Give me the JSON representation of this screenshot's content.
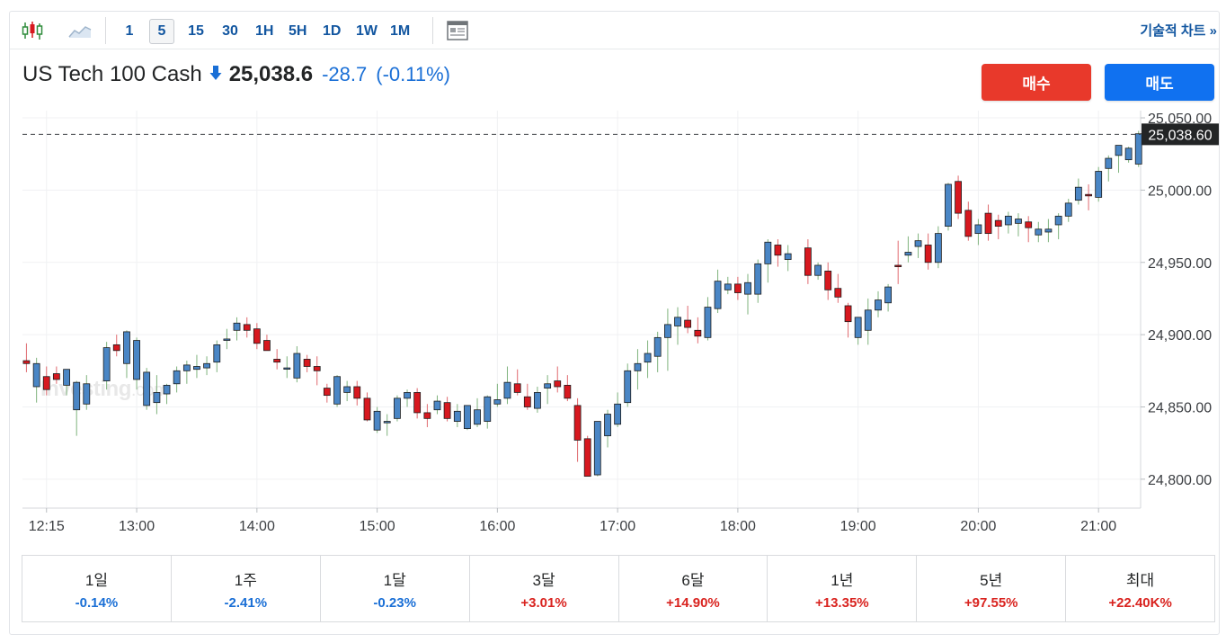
{
  "toolbar": {
    "intervals": [
      "1",
      "5",
      "15",
      "30",
      "1H",
      "5H",
      "1D",
      "1W",
      "1M"
    ],
    "active_interval": "5",
    "tech_chart_label": "기술적 차트 »"
  },
  "header": {
    "instrument": "US Tech 100 Cash",
    "price": "25,038.6",
    "change": "-28.7",
    "change_pct": "(-0.11%)"
  },
  "buttons": {
    "buy": "매수",
    "sell": "매도"
  },
  "watermark": {
    "main": "Investing",
    "suffix": ".com"
  },
  "periods": [
    {
      "label": "1일",
      "value": "-0.14%",
      "dir": "neg"
    },
    {
      "label": "1주",
      "value": "-2.41%",
      "dir": "neg"
    },
    {
      "label": "1달",
      "value": "-0.23%",
      "dir": "neg"
    },
    {
      "label": "3달",
      "value": "+3.01%",
      "dir": "pos"
    },
    {
      "label": "6달",
      "value": "+14.90%",
      "dir": "pos"
    },
    {
      "label": "1년",
      "value": "+13.35%",
      "dir": "pos"
    },
    {
      "label": "5년",
      "value": "+97.55%",
      "dir": "pos"
    },
    {
      "label": "최대",
      "value": "+22.40K%",
      "dir": "pos"
    }
  ],
  "colors": {
    "up": "#4a86c5",
    "down": "#d7181f",
    "accent": "#1256a0",
    "buy": "#e8392b",
    "sell": "#1071f0"
  },
  "chart_data": {
    "type": "candlestick",
    "ylim": [
      24780,
      25055
    ],
    "yticks": [
      "25,050.00",
      "25,000.00",
      "24,950.00",
      "24,900.00",
      "24,850.00",
      "24,800.00"
    ],
    "ytick_values": [
      25050,
      25000,
      24950,
      24900,
      24850,
      24800
    ],
    "xticks": [
      "12:15",
      "13:00",
      "14:00",
      "15:00",
      "16:00",
      "17:00",
      "18:00",
      "19:00",
      "20:00",
      "21:00"
    ],
    "xtick_hours": [
      12.25,
      13,
      14,
      15,
      16,
      17,
      18,
      19,
      20,
      21
    ],
    "current_price_label": "25,038.60",
    "current_price": 25038.6,
    "time_range_hours": [
      12.05,
      21.35
    ],
    "candles": [
      {
        "t": 12.083,
        "o": 24882,
        "h": 24894,
        "l": 24874,
        "c": 24880
      },
      {
        "t": 12.167,
        "o": 24864,
        "h": 24884,
        "l": 24853,
        "c": 24880
      },
      {
        "t": 12.25,
        "o": 24871,
        "h": 24878,
        "l": 24858,
        "c": 24862
      },
      {
        "t": 12.333,
        "o": 24873,
        "h": 24878,
        "l": 24866,
        "c": 24869
      },
      {
        "t": 12.417,
        "o": 24865,
        "h": 24875,
        "l": 24858,
        "c": 24876
      },
      {
        "t": 12.5,
        "o": 24848,
        "h": 24868,
        "l": 24830,
        "c": 24867
      },
      {
        "t": 12.583,
        "o": 24852,
        "h": 24872,
        "l": 24848,
        "c": 24866
      },
      {
        "t": 12.75,
        "o": 24868,
        "h": 24895,
        "l": 24862,
        "c": 24891
      },
      {
        "t": 12.833,
        "o": 24893,
        "h": 24900,
        "l": 24885,
        "c": 24889
      },
      {
        "t": 12.917,
        "o": 24880,
        "h": 24903,
        "l": 24870,
        "c": 24902
      },
      {
        "t": 13.0,
        "o": 24869,
        "h": 24898,
        "l": 24862,
        "c": 24896
      },
      {
        "t": 13.083,
        "o": 24851,
        "h": 24877,
        "l": 24848,
        "c": 24874
      },
      {
        "t": 13.167,
        "o": 24853,
        "h": 24872,
        "l": 24845,
        "c": 24860
      },
      {
        "t": 13.25,
        "o": 24859,
        "h": 24866,
        "l": 24852,
        "c": 24865
      },
      {
        "t": 13.333,
        "o": 24866,
        "h": 24878,
        "l": 24860,
        "c": 24875
      },
      {
        "t": 13.417,
        "o": 24875,
        "h": 24882,
        "l": 24866,
        "c": 24879
      },
      {
        "t": 13.5,
        "o": 24876,
        "h": 24886,
        "l": 24870,
        "c": 24878
      },
      {
        "t": 13.583,
        "o": 24877,
        "h": 24885,
        "l": 24872,
        "c": 24880
      },
      {
        "t": 13.667,
        "o": 24881,
        "h": 24896,
        "l": 24874,
        "c": 24893
      },
      {
        "t": 13.75,
        "o": 24896,
        "h": 24904,
        "l": 24890,
        "c": 24897
      },
      {
        "t": 13.833,
        "o": 24903,
        "h": 24912,
        "l": 24896,
        "c": 24908
      },
      {
        "t": 13.917,
        "o": 24907,
        "h": 24912,
        "l": 24898,
        "c": 24903
      },
      {
        "t": 14.0,
        "o": 24904,
        "h": 24908,
        "l": 24890,
        "c": 24894
      },
      {
        "t": 14.083,
        "o": 24896,
        "h": 24900,
        "l": 24890,
        "c": 24889
      },
      {
        "t": 14.167,
        "o": 24883,
        "h": 24890,
        "l": 24876,
        "c": 24881
      },
      {
        "t": 14.25,
        "o": 24877,
        "h": 24885,
        "l": 24870,
        "c": 24877
      },
      {
        "t": 14.333,
        "o": 24870,
        "h": 24892,
        "l": 24867,
        "c": 24887
      },
      {
        "t": 14.417,
        "o": 24883,
        "h": 24886,
        "l": 24874,
        "c": 24878
      },
      {
        "t": 14.5,
        "o": 24878,
        "h": 24885,
        "l": 24865,
        "c": 24875
      },
      {
        "t": 14.583,
        "o": 24863,
        "h": 24866,
        "l": 24853,
        "c": 24858
      },
      {
        "t": 14.667,
        "o": 24852,
        "h": 24872,
        "l": 24850,
        "c": 24871
      },
      {
        "t": 14.75,
        "o": 24860,
        "h": 24868,
        "l": 24854,
        "c": 24864
      },
      {
        "t": 14.833,
        "o": 24864,
        "h": 24868,
        "l": 24851,
        "c": 24856
      },
      {
        "t": 14.917,
        "o": 24856,
        "h": 24860,
        "l": 24840,
        "c": 24841
      },
      {
        "t": 15.0,
        "o": 24834,
        "h": 24850,
        "l": 24832,
        "c": 24847
      },
      {
        "t": 15.083,
        "o": 24839,
        "h": 24845,
        "l": 24830,
        "c": 24840
      },
      {
        "t": 15.167,
        "o": 24842,
        "h": 24858,
        "l": 24840,
        "c": 24856
      },
      {
        "t": 15.25,
        "o": 24856,
        "h": 24862,
        "l": 24850,
        "c": 24860
      },
      {
        "t": 15.333,
        "o": 24860,
        "h": 24863,
        "l": 24842,
        "c": 24846
      },
      {
        "t": 15.417,
        "o": 24846,
        "h": 24852,
        "l": 24836,
        "c": 24842
      },
      {
        "t": 15.5,
        "o": 24848,
        "h": 24858,
        "l": 24845,
        "c": 24854
      },
      {
        "t": 15.583,
        "o": 24853,
        "h": 24857,
        "l": 24840,
        "c": 24842
      },
      {
        "t": 15.667,
        "o": 24840,
        "h": 24852,
        "l": 24836,
        "c": 24847
      },
      {
        "t": 15.75,
        "o": 24835,
        "h": 24850,
        "l": 24834,
        "c": 24851
      },
      {
        "t": 15.833,
        "o": 24838,
        "h": 24856,
        "l": 24836,
        "c": 24848
      },
      {
        "t": 15.917,
        "o": 24840,
        "h": 24858,
        "l": 24835,
        "c": 24857
      },
      {
        "t": 16.0,
        "o": 24852,
        "h": 24866,
        "l": 24850,
        "c": 24855
      },
      {
        "t": 16.083,
        "o": 24856,
        "h": 24878,
        "l": 24852,
        "c": 24867
      },
      {
        "t": 16.167,
        "o": 24866,
        "h": 24876,
        "l": 24858,
        "c": 24860
      },
      {
        "t": 16.25,
        "o": 24857,
        "h": 24866,
        "l": 24848,
        "c": 24850
      },
      {
        "t": 16.333,
        "o": 24849,
        "h": 24864,
        "l": 24846,
        "c": 24860
      },
      {
        "t": 16.417,
        "o": 24863,
        "h": 24872,
        "l": 24852,
        "c": 24866
      },
      {
        "t": 16.5,
        "o": 24868,
        "h": 24878,
        "l": 24860,
        "c": 24864
      },
      {
        "t": 16.583,
        "o": 24865,
        "h": 24872,
        "l": 24854,
        "c": 24856
      },
      {
        "t": 16.667,
        "o": 24851,
        "h": 24856,
        "l": 24812,
        "c": 24827
      },
      {
        "t": 16.75,
        "o": 24828,
        "h": 24830,
        "l": 24802,
        "c": 24802
      },
      {
        "t": 16.833,
        "o": 24803,
        "h": 24840,
        "l": 24802,
        "c": 24840
      },
      {
        "t": 16.917,
        "o": 24830,
        "h": 24848,
        "l": 24822,
        "c": 24845
      },
      {
        "t": 17.0,
        "o": 24838,
        "h": 24860,
        "l": 24836,
        "c": 24852
      },
      {
        "t": 17.083,
        "o": 24853,
        "h": 24880,
        "l": 24850,
        "c": 24875
      },
      {
        "t": 17.167,
        "o": 24875,
        "h": 24890,
        "l": 24862,
        "c": 24880
      },
      {
        "t": 17.25,
        "o": 24881,
        "h": 24896,
        "l": 24870,
        "c": 24887
      },
      {
        "t": 17.333,
        "o": 24885,
        "h": 24902,
        "l": 24874,
        "c": 24898
      },
      {
        "t": 17.417,
        "o": 24898,
        "h": 24918,
        "l": 24875,
        "c": 24907
      },
      {
        "t": 17.5,
        "o": 24906,
        "h": 24919,
        "l": 24893,
        "c": 24912
      },
      {
        "t": 17.583,
        "o": 24910,
        "h": 24920,
        "l": 24901,
        "c": 24905
      },
      {
        "t": 17.667,
        "o": 24903,
        "h": 24912,
        "l": 24894,
        "c": 24899
      },
      {
        "t": 17.75,
        "o": 24898,
        "h": 24926,
        "l": 24896,
        "c": 24919
      },
      {
        "t": 17.833,
        "o": 24918,
        "h": 24945,
        "l": 24915,
        "c": 24937
      },
      {
        "t": 17.917,
        "o": 24931,
        "h": 24940,
        "l": 24928,
        "c": 24935
      },
      {
        "t": 18.0,
        "o": 24935,
        "h": 24940,
        "l": 24924,
        "c": 24929
      },
      {
        "t": 18.083,
        "o": 24928,
        "h": 24942,
        "l": 24914,
        "c": 24936
      },
      {
        "t": 18.167,
        "o": 24928,
        "h": 24952,
        "l": 24922,
        "c": 24949
      },
      {
        "t": 18.25,
        "o": 24949,
        "h": 24966,
        "l": 24936,
        "c": 24964
      },
      {
        "t": 18.333,
        "o": 24962,
        "h": 24966,
        "l": 24947,
        "c": 24955
      },
      {
        "t": 18.417,
        "o": 24952,
        "h": 24962,
        "l": 24944,
        "c": 24956
      },
      {
        "t": 18.583,
        "o": 24960,
        "h": 24966,
        "l": 24935,
        "c": 24941
      },
      {
        "t": 18.667,
        "o": 24941,
        "h": 24950,
        "l": 24938,
        "c": 24948
      },
      {
        "t": 18.75,
        "o": 24944,
        "h": 24950,
        "l": 24924,
        "c": 24931
      },
      {
        "t": 18.833,
        "o": 24932,
        "h": 24942,
        "l": 24922,
        "c": 24926
      },
      {
        "t": 18.917,
        "o": 24920,
        "h": 24922,
        "l": 24898,
        "c": 24909
      },
      {
        "t": 19.0,
        "o": 24898,
        "h": 24910,
        "l": 24893,
        "c": 24912
      },
      {
        "t": 19.083,
        "o": 24903,
        "h": 24925,
        "l": 24893,
        "c": 24917
      },
      {
        "t": 19.167,
        "o": 24917,
        "h": 24930,
        "l": 24912,
        "c": 24924
      },
      {
        "t": 19.25,
        "o": 24922,
        "h": 24935,
        "l": 24916,
        "c": 24933
      },
      {
        "t": 19.333,
        "o": 24948,
        "h": 24965,
        "l": 24935,
        "c": 24947
      },
      {
        "t": 19.417,
        "o": 24955,
        "h": 24968,
        "l": 24950,
        "c": 24957
      },
      {
        "t": 19.5,
        "o": 24961,
        "h": 24970,
        "l": 24953,
        "c": 24965
      },
      {
        "t": 19.583,
        "o": 24962,
        "h": 24970,
        "l": 24945,
        "c": 24950
      },
      {
        "t": 19.667,
        "o": 24950,
        "h": 24975,
        "l": 24946,
        "c": 24970
      },
      {
        "t": 19.75,
        "o": 24975,
        "h": 25005,
        "l": 24972,
        "c": 25004
      },
      {
        "t": 19.833,
        "o": 25006,
        "h": 25010,
        "l": 24980,
        "c": 24984
      },
      {
        "t": 19.917,
        "o": 24986,
        "h": 24992,
        "l": 24965,
        "c": 24968
      },
      {
        "t": 20.0,
        "o": 24970,
        "h": 24980,
        "l": 24962,
        "c": 24976
      },
      {
        "t": 20.083,
        "o": 24984,
        "h": 24990,
        "l": 24965,
        "c": 24970
      },
      {
        "t": 20.167,
        "o": 24979,
        "h": 24983,
        "l": 24966,
        "c": 24975
      },
      {
        "t": 20.25,
        "o": 24976,
        "h": 24985,
        "l": 24970,
        "c": 24982
      },
      {
        "t": 20.333,
        "o": 24977,
        "h": 24984,
        "l": 24968,
        "c": 24980
      },
      {
        "t": 20.417,
        "o": 24978,
        "h": 24982,
        "l": 24964,
        "c": 24974
      },
      {
        "t": 20.5,
        "o": 24969,
        "h": 24978,
        "l": 24964,
        "c": 24973
      },
      {
        "t": 20.583,
        "o": 24971,
        "h": 24980,
        "l": 24964,
        "c": 24973
      },
      {
        "t": 20.667,
        "o": 24976,
        "h": 24984,
        "l": 24966,
        "c": 24982
      },
      {
        "t": 20.75,
        "o": 24982,
        "h": 24994,
        "l": 24978,
        "c": 24991
      },
      {
        "t": 20.833,
        "o": 24993,
        "h": 25008,
        "l": 24990,
        "c": 25002
      },
      {
        "t": 20.917,
        "o": 24997,
        "h": 25004,
        "l": 24986,
        "c": 24996
      },
      {
        "t": 21.0,
        "o": 24995,
        "h": 25016,
        "l": 24992,
        "c": 25013
      },
      {
        "t": 21.083,
        "o": 25015,
        "h": 25024,
        "l": 25006,
        "c": 25022
      },
      {
        "t": 21.167,
        "o": 25024,
        "h": 25029,
        "l": 25012,
        "c": 25031
      },
      {
        "t": 21.25,
        "o": 25021,
        "h": 25030,
        "l": 25019,
        "c": 25029
      },
      {
        "t": 21.333,
        "o": 25018,
        "h": 25041,
        "l": 25016,
        "c": 25039
      }
    ]
  }
}
